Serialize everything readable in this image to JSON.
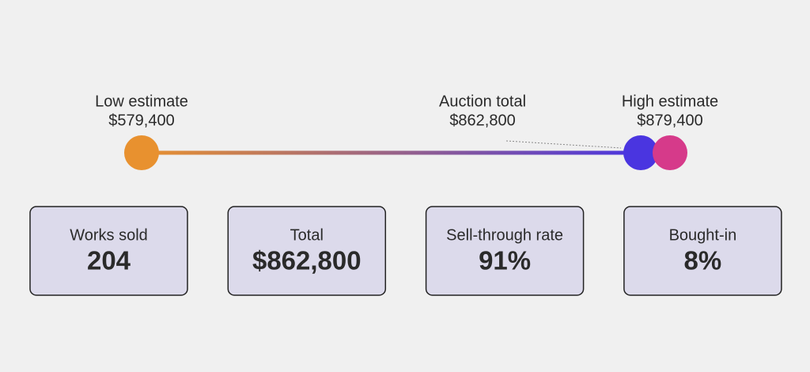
{
  "range": {
    "markers": [
      {
        "label": "Low estimate",
        "value": 579400,
        "value_label": "$579,400",
        "color": "#e8912f"
      },
      {
        "label": "Auction total",
        "value": 862800,
        "value_label": "$862,800",
        "color": "#4a35e0"
      },
      {
        "label": "High estimate",
        "value": 879400,
        "value_label": "$879,400",
        "color": "#d63a8a"
      }
    ]
  },
  "stats": [
    {
      "label": "Works sold",
      "value": "204"
    },
    {
      "label": "Total",
      "value": "$862,800"
    },
    {
      "label": "Sell-through rate",
      "value": "91%"
    },
    {
      "label": "Bought-in",
      "value": "8%"
    }
  ]
}
